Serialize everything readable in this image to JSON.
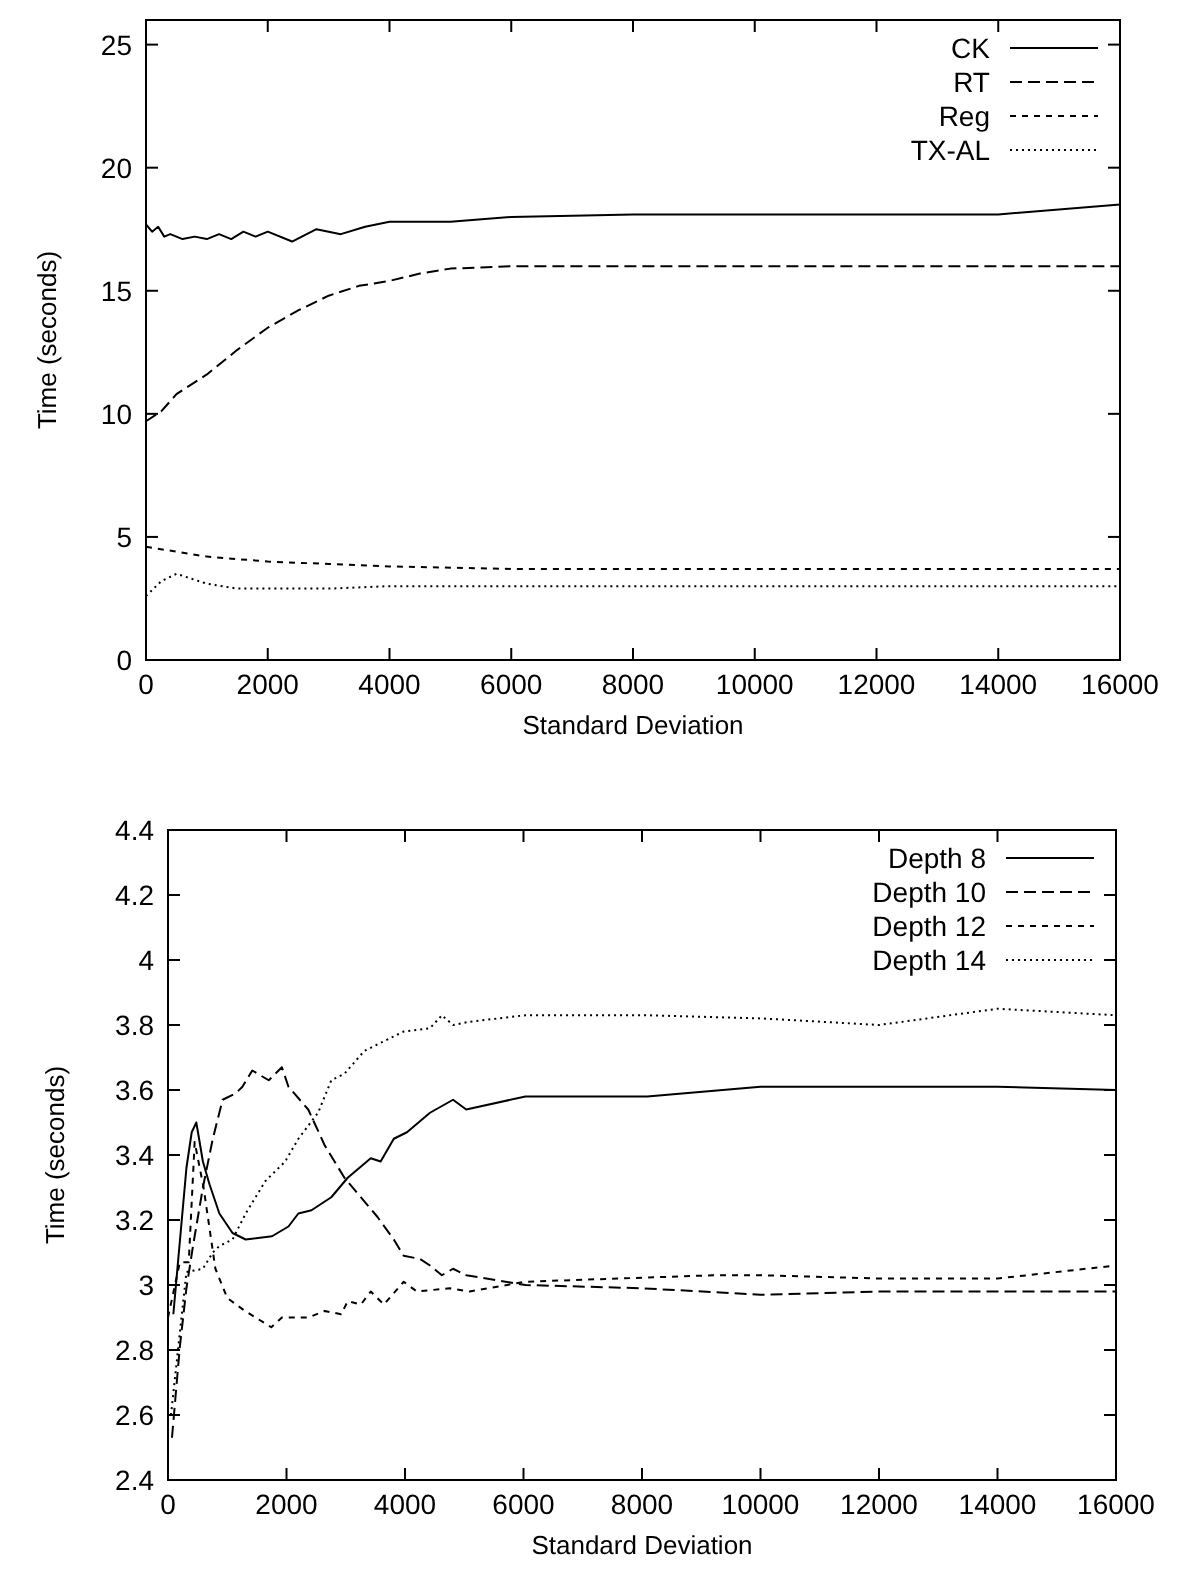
{
  "chart_data": [
    {
      "type": "line",
      "xlabel": "Standard Deviation",
      "ylabel": "Time (seconds)",
      "xlim": [
        0,
        16000
      ],
      "ylim": [
        0,
        26
      ],
      "xticks": [
        0,
        2000,
        4000,
        6000,
        8000,
        10000,
        12000,
        14000,
        16000
      ],
      "yticks": [
        0,
        5,
        10,
        15,
        20,
        25
      ],
      "grid": false,
      "legend": "top right",
      "series": [
        {
          "name": "CK",
          "color": "#000000",
          "line_style": "solid",
          "x": [
            0,
            100,
            200,
            300,
            400,
            600,
            800,
            1000,
            1200,
            1400,
            1600,
            1800,
            2000,
            2400,
            2800,
            3200,
            3600,
            4000,
            5000,
            6000,
            8000,
            10000,
            12000,
            14000,
            16000
          ],
          "values": [
            17.7,
            17.4,
            17.6,
            17.2,
            17.3,
            17.1,
            17.2,
            17.1,
            17.3,
            17.1,
            17.4,
            17.2,
            17.4,
            17.0,
            17.5,
            17.3,
            17.6,
            17.8,
            17.8,
            18.0,
            18.1,
            18.1,
            18.1,
            18.1,
            18.5
          ]
        },
        {
          "name": "RT",
          "color": "#000000",
          "line_style": "dashed",
          "x": [
            0,
            250,
            500,
            1000,
            1500,
            2000,
            2500,
            3000,
            3500,
            4000,
            4500,
            5000,
            6000,
            8000,
            10000,
            12000,
            14000,
            16000
          ],
          "values": [
            9.7,
            10.1,
            10.8,
            11.6,
            12.6,
            13.5,
            14.2,
            14.8,
            15.2,
            15.4,
            15.7,
            15.9,
            16.0,
            16.0,
            16.0,
            16.0,
            16.0,
            16.0
          ]
        },
        {
          "name": "Reg",
          "color": "#000000",
          "line_style": "short-dashed",
          "x": [
            0,
            500,
            1000,
            2000,
            3000,
            4000,
            6000,
            8000,
            10000,
            12000,
            14000,
            16000
          ],
          "values": [
            4.6,
            4.4,
            4.2,
            4.0,
            3.9,
            3.8,
            3.7,
            3.7,
            3.7,
            3.7,
            3.7,
            3.7
          ]
        },
        {
          "name": "TX-AL",
          "color": "#000000",
          "line_style": "dotted",
          "x": [
            0,
            250,
            500,
            1000,
            1500,
            2000,
            3000,
            4000,
            6000,
            8000,
            10000,
            12000,
            14000,
            16000
          ],
          "values": [
            2.6,
            3.2,
            3.5,
            3.1,
            2.9,
            2.9,
            2.9,
            3.0,
            3.0,
            3.0,
            3.0,
            3.0,
            3.0,
            3.0
          ]
        }
      ]
    },
    {
      "type": "line",
      "xlabel": "Standard Deviation",
      "ylabel": "Time (seconds)",
      "xlim": [
        0,
        16000
      ],
      "ylim": [
        2.4,
        4.4
      ],
      "xticks": [
        0,
        2000,
        4000,
        6000,
        8000,
        10000,
        12000,
        14000,
        16000
      ],
      "yticks": [
        {
          "value": 2.4,
          "label": "2.4"
        },
        {
          "value": 2.6,
          "label": "2.6"
        },
        {
          "value": 2.8,
          "label": "2.8"
        },
        {
          "value": 3,
          "label": "3"
        },
        {
          "value": 3.2,
          "label": "3.2"
        },
        {
          "value": 3.4,
          "label": "3.4"
        },
        {
          "value": 3.6,
          "label": "3.6"
        },
        {
          "value": 3.8,
          "label": "3.8"
        },
        {
          "value": 4,
          "label": "4"
        },
        {
          "value": 4.2,
          "label": "4.2"
        },
        {
          "value": 4.4,
          "label": "4.4"
        }
      ],
      "grid": false,
      "legend": "top right",
      "series": [
        {
          "name": "Depth 8",
          "color": "#000000",
          "line_style": "solid",
          "x": [
            90,
            311,
            400,
            478,
            589,
            700,
            867,
            1089,
            1311,
            1756,
            2033,
            2200,
            2422,
            2756,
            3033,
            3422,
            3589,
            3811,
            4033,
            4422,
            4811,
            5033,
            6033,
            8089,
            10000,
            14000,
            16000
          ],
          "values": [
            2.91,
            3.36,
            3.47,
            3.5,
            3.38,
            3.31,
            3.22,
            3.16,
            3.14,
            3.15,
            3.18,
            3.22,
            3.23,
            3.27,
            3.33,
            3.39,
            3.38,
            3.45,
            3.47,
            3.53,
            3.57,
            3.54,
            3.58,
            3.58,
            3.61,
            3.61,
            3.6
          ]
        },
        {
          "name": "Depth 10",
          "color": "#000000",
          "line_style": "dashed",
          "x": [
            67,
            200,
            311,
            422,
            589,
            756,
            922,
            1144,
            1256,
            1422,
            1700,
            1922,
            2033,
            2367,
            2644,
            2978,
            3533,
            3811,
            3978,
            4256,
            4422,
            4622,
            4811,
            5033,
            6033,
            8000,
            10000,
            12000,
            14000,
            16000
          ],
          "values": [
            2.53,
            2.81,
            2.99,
            3.12,
            3.3,
            3.45,
            3.57,
            3.59,
            3.61,
            3.66,
            3.63,
            3.67,
            3.61,
            3.54,
            3.43,
            3.33,
            3.21,
            3.14,
            3.09,
            3.08,
            3.06,
            3.03,
            3.05,
            3.03,
            3.0,
            2.99,
            2.97,
            2.98,
            2.98,
            2.98
          ]
        },
        {
          "name": "Depth 12",
          "color": "#000000",
          "line_style": "short-dashed",
          "x": [
            0,
            200,
            350,
            450,
            600,
            800,
            1000,
            1300,
            1744,
            1922,
            2367,
            2644,
            2922,
            3033,
            3256,
            3422,
            3644,
            3978,
            4200,
            4756,
            5089,
            6033,
            9200,
            10033,
            12000,
            14000,
            16000
          ],
          "values": [
            2.9,
            3.07,
            3.07,
            3.44,
            3.3,
            3.05,
            2.96,
            2.92,
            2.87,
            2.9,
            2.9,
            2.92,
            2.91,
            2.95,
            2.94,
            2.98,
            2.94,
            3.01,
            2.98,
            2.99,
            2.98,
            3.01,
            3.03,
            3.03,
            3.02,
            3.02,
            3.06
          ]
        },
        {
          "name": "Depth 14",
          "color": "#000000",
          "line_style": "dotted",
          "x": [
            50,
            311,
            589,
            756,
            867,
            1089,
            1311,
            1644,
            1978,
            2200,
            2533,
            2756,
            2978,
            3311,
            3644,
            3978,
            4422,
            4622,
            4811,
            5089,
            6033,
            8089,
            10033,
            12000,
            14000,
            16000
          ],
          "values": [
            2.6,
            3.04,
            3.05,
            3.1,
            3.12,
            3.14,
            3.22,
            3.32,
            3.38,
            3.45,
            3.53,
            3.63,
            3.65,
            3.72,
            3.75,
            3.78,
            3.79,
            3.83,
            3.8,
            3.81,
            3.83,
            3.83,
            3.82,
            3.8,
            3.85,
            3.83
          ]
        }
      ]
    }
  ]
}
